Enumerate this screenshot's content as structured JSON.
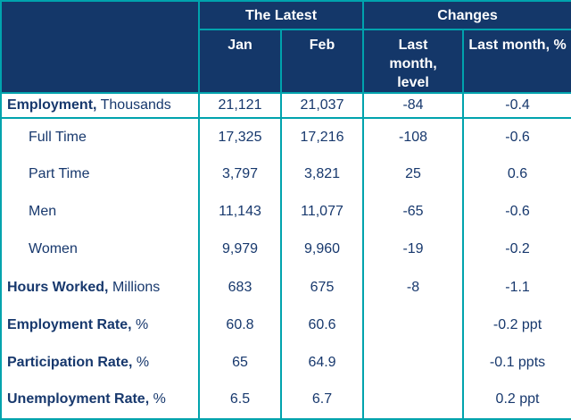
{
  "colors": {
    "header_bg": "#143769",
    "border_teal": "#00a3ad",
    "text_navy": "#17386d",
    "header_text": "#ffffff"
  },
  "header": {
    "group_latest": "The Latest",
    "group_changes": "Changes",
    "col_jan": "Jan",
    "col_feb": "Feb",
    "col_level": "Last month, level",
    "col_pct": "Last month, %"
  },
  "rows": [
    {
      "label_strong": "Employment,",
      "label_plain": " Thousands",
      "jan": "21,121",
      "feb": "21,037",
      "level": "-84",
      "pct": "-0.4"
    },
    {
      "label_strong": "",
      "label_plain": "Full Time",
      "jan": "17,325",
      "feb": "17,216",
      "level": "-108",
      "pct": "-0.6"
    },
    {
      "label_strong": "",
      "label_plain": "Part Time",
      "jan": "3,797",
      "feb": "3,821",
      "level": "25",
      "pct": "0.6"
    },
    {
      "label_strong": "",
      "label_plain": "Men",
      "jan": "11,143",
      "feb": "11,077",
      "level": "-65",
      "pct": "-0.6"
    },
    {
      "label_strong": "",
      "label_plain": "Women",
      "jan": "9,979",
      "feb": "9,960",
      "level": "-19",
      "pct": "-0.2"
    },
    {
      "label_strong": "Hours Worked,",
      "label_plain": " Millions",
      "jan": "683",
      "feb": "675",
      "level": "-8",
      "pct": "-1.1"
    },
    {
      "label_strong": "Employment Rate,",
      "label_plain": " %",
      "jan": "60.8",
      "feb": "60.6",
      "level": "",
      "pct": "-0.2 ppt"
    },
    {
      "label_strong": "Participation Rate,",
      "label_plain": " %",
      "jan": "65",
      "feb": "64.9",
      "level": "",
      "pct": "-0.1 ppts"
    },
    {
      "label_strong": "Unemployment Rate,",
      "label_plain": " %",
      "jan": "6.5",
      "feb": "6.7",
      "level": "",
      "pct": "0.2 ppt"
    }
  ],
  "chart_data": {
    "type": "table",
    "title": "",
    "column_groups": [
      {
        "label": "The Latest",
        "columns": [
          "Jan",
          "Feb"
        ]
      },
      {
        "label": "Changes",
        "columns": [
          "Last month, level",
          "Last month, %"
        ]
      }
    ],
    "columns": [
      "Jan",
      "Feb",
      "Last month, level",
      "Last month, %"
    ],
    "rows": [
      {
        "label": "Employment, Thousands",
        "jan": 21121,
        "feb": 21037,
        "last_month_level": -84,
        "last_month_pct": -0.4,
        "indented": false
      },
      {
        "label": "Full Time",
        "jan": 17325,
        "feb": 17216,
        "last_month_level": -108,
        "last_month_pct": -0.6,
        "indented": true
      },
      {
        "label": "Part Time",
        "jan": 3797,
        "feb": 3821,
        "last_month_level": 25,
        "last_month_pct": 0.6,
        "indented": true
      },
      {
        "label": "Men",
        "jan": 11143,
        "feb": 11077,
        "last_month_level": -65,
        "last_month_pct": -0.6,
        "indented": true
      },
      {
        "label": "Women",
        "jan": 9979,
        "feb": 9960,
        "last_month_level": -19,
        "last_month_pct": -0.2,
        "indented": true
      },
      {
        "label": "Hours Worked, Millions",
        "jan": 683,
        "feb": 675,
        "last_month_level": -8,
        "last_month_pct": -1.1,
        "indented": false
      },
      {
        "label": "Employment Rate, %",
        "jan": 60.8,
        "feb": 60.6,
        "last_month_level": null,
        "last_month_pct": "-0.2 ppt",
        "indented": false
      },
      {
        "label": "Participation Rate, %",
        "jan": 65,
        "feb": 64.9,
        "last_month_level": null,
        "last_month_pct": "-0.1 ppts",
        "indented": false
      },
      {
        "label": "Unemployment Rate, %",
        "jan": 6.5,
        "feb": 6.7,
        "last_month_level": null,
        "last_month_pct": "0.2 ppt",
        "indented": false
      }
    ],
    "layout": {
      "grid": "teal vertical separators; horizontal rules under header and first row only",
      "header_style": "navy background, white bold text"
    }
  }
}
